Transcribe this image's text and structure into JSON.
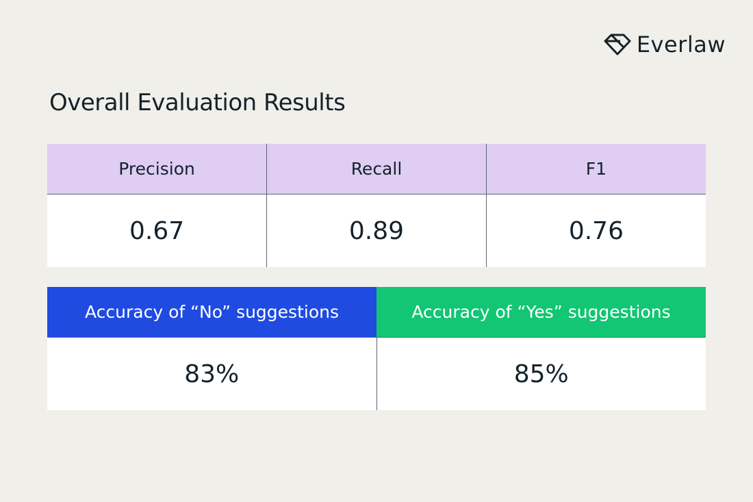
{
  "brand": {
    "name": "Everlaw",
    "logo_icon": "diamond-logo-icon"
  },
  "page": {
    "title": "Overall Evaluation Results"
  },
  "metrics_table": {
    "headers": [
      "Precision",
      "Recall",
      "F1"
    ],
    "values": [
      "0.67",
      "0.89",
      "0.76"
    ],
    "header_bg": "#dfcdf3"
  },
  "accuracy_table": {
    "headers": [
      "Accuracy of “No” suggestions",
      "Accuracy of “Yes” suggestions"
    ],
    "values": [
      "83%",
      "85%"
    ],
    "header_colors": [
      "#1f4be1",
      "#12c674"
    ]
  },
  "colors": {
    "background": "#f1efea",
    "text": "#14222b"
  }
}
